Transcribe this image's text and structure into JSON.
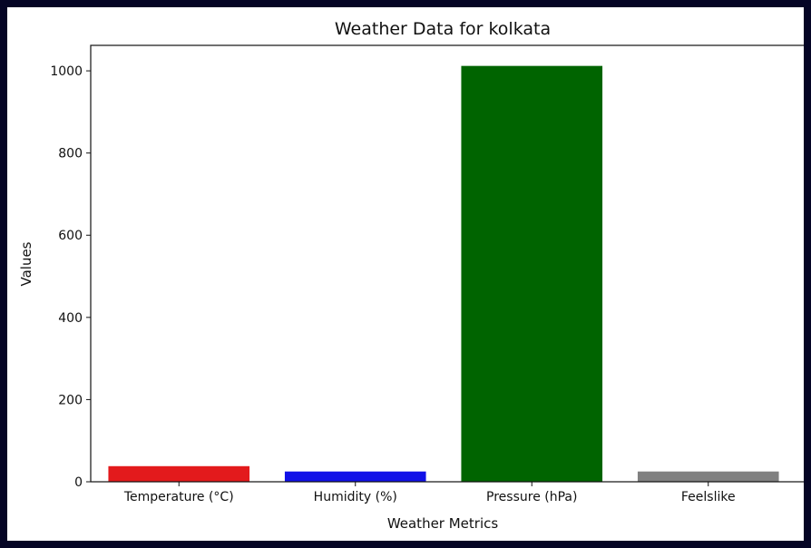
{
  "chart_data": {
    "type": "bar",
    "title": "Weather Data for kolkata",
    "xlabel": "Weather Metrics",
    "ylabel": "Values",
    "categories": [
      "Temperature (°C)",
      "Humidity (%)",
      "Pressure (hPa)",
      "Feelslike"
    ],
    "values": [
      38,
      25,
      1012,
      25
    ],
    "colors": [
      "#e31a1c",
      "#1010e8",
      "#006400",
      "#808080"
    ],
    "yticks": [
      0,
      200,
      400,
      600,
      800,
      1000
    ],
    "ylim": [
      0,
      1062
    ],
    "grid": false,
    "legend": "none"
  }
}
